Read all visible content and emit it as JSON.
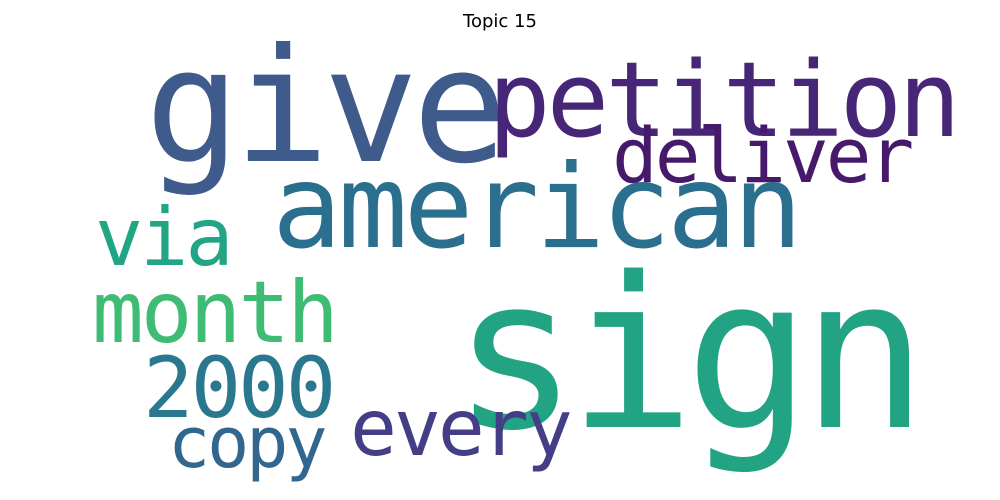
{
  "title": "Topic 15",
  "words": {
    "give": {
      "text": "give",
      "color": "#3e5b8b"
    },
    "petition": {
      "text": "petition",
      "color": "#482677"
    },
    "deliver": {
      "text": "deliver",
      "color": "#46196b"
    },
    "american": {
      "text": "american",
      "color": "#2a6f8e"
    },
    "via": {
      "text": "via",
      "color": "#21a585"
    },
    "month": {
      "text": "month",
      "color": "#3fbc73"
    },
    "sign": {
      "text": "sign",
      "color": "#22a384"
    },
    "n2000": {
      "text": "2000",
      "color": "#2a788e"
    },
    "copy": {
      "text": "copy",
      "color": "#31668e"
    },
    "every": {
      "text": "every",
      "color": "#433e85"
    }
  }
}
